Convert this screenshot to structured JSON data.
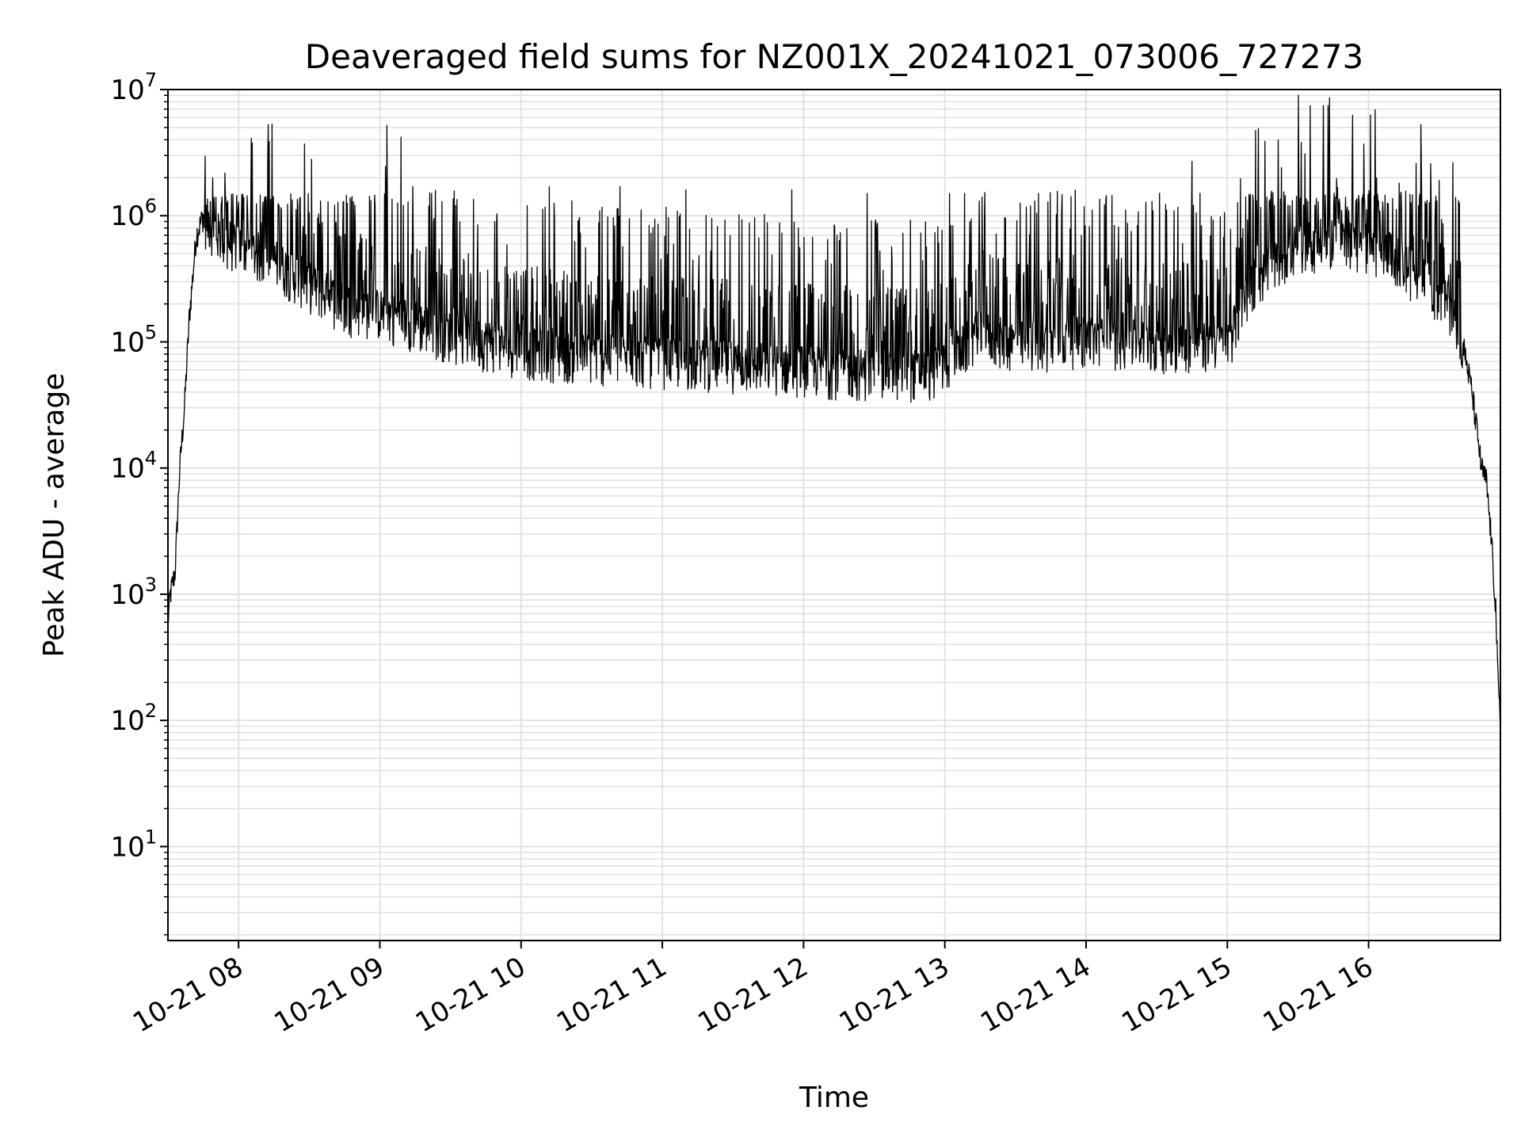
{
  "chart_data": {
    "type": "line",
    "title": "Deaveraged field sums for NZ001X_20241021_073006_727273",
    "xlabel": "Time",
    "ylabel": "Peak ADU - average",
    "yscale": "log",
    "xlim": [
      "2024-10-21 07:30",
      "2024-10-21 16:56"
    ],
    "ylim": [
      1.8,
      10000000
    ],
    "grid": true,
    "line_color": "#000000",
    "x_ticks": [
      "10-21 08",
      "10-21 09",
      "10-21 10",
      "10-21 11",
      "10-21 12",
      "10-21 13",
      "10-21 14",
      "10-21 15",
      "10-21 16"
    ],
    "y_ticks": [
      {
        "value": 10,
        "base": "10",
        "exp": "1"
      },
      {
        "value": 100,
        "base": "10",
        "exp": "2"
      },
      {
        "value": 1000,
        "base": "10",
        "exp": "3"
      },
      {
        "value": 10000,
        "base": "10",
        "exp": "4"
      },
      {
        "value": 100000,
        "base": "10",
        "exp": "5"
      },
      {
        "value": 1000000,
        "base": "10",
        "exp": "6"
      },
      {
        "value": 10000000,
        "base": "10",
        "exp": "7"
      }
    ],
    "series": [
      {
        "baseline": {
          "x": [
            "2024-10-21 07:30",
            "2024-10-21 07:31",
            "2024-10-21 07:33",
            "2024-10-21 07:35",
            "2024-10-21 07:37",
            "2024-10-21 07:39",
            "2024-10-21 07:42",
            "2024-10-21 07:45",
            "2024-10-21 07:48",
            "2024-10-21 07:52",
            "2024-10-21 08:00",
            "2024-10-21 08:15",
            "2024-10-21 08:30",
            "2024-10-21 08:45",
            "2024-10-21 09:00",
            "2024-10-21 09:30",
            "2024-10-21 10:00",
            "2024-10-21 10:30",
            "2024-10-21 11:00",
            "2024-10-21 11:30",
            "2024-10-21 12:00",
            "2024-10-21 12:30",
            "2024-10-21 12:55",
            "2024-10-21 13:15",
            "2024-10-21 13:30",
            "2024-10-21 14:00",
            "2024-10-21 14:30",
            "2024-10-21 15:00",
            "2024-10-21 15:10",
            "2024-10-21 15:30",
            "2024-10-21 15:50",
            "2024-10-21 16:10",
            "2024-10-21 16:25",
            "2024-10-21 16:35",
            "2024-10-21 16:40",
            "2024-10-21 16:44",
            "2024-10-21 16:48",
            "2024-10-21 16:50",
            "2024-10-21 16:52",
            "2024-10-21 16:54",
            "2024-10-21 16:55",
            "2024-10-21 16:56"
          ],
          "y": [
            600,
            1000,
            1500,
            10000,
            30000,
            150000,
            700000,
            1000000,
            900000,
            700000,
            600000,
            450000,
            300000,
            200000,
            180000,
            120000,
            90000,
            80000,
            75000,
            70000,
            65000,
            60000,
            60000,
            120000,
            100000,
            110000,
            100000,
            100000,
            300000,
            600000,
            700000,
            500000,
            300000,
            200000,
            100000,
            40000,
            10000,
            8000,
            3000,
            800,
            200,
            90
          ]
        },
        "spikes": [
          {
            "x": "2024-10-21 07:49",
            "y": 2000000
          },
          {
            "x": "2024-10-21 08:28",
            "y": 3700000
          },
          {
            "x": "2024-10-21 08:31",
            "y": 2800000
          },
          {
            "x": "2024-10-21 09:03",
            "y": 5200000
          },
          {
            "x": "2024-10-21 09:09",
            "y": 4200000
          },
          {
            "x": "2024-10-21 10:12",
            "y": 1700000
          },
          {
            "x": "2024-10-21 10:42",
            "y": 1700000
          },
          {
            "x": "2024-10-21 11:10",
            "y": 1600000
          },
          {
            "x": "2024-10-21 11:55",
            "y": 1600000
          },
          {
            "x": "2024-10-21 12:27",
            "y": 1500000
          },
          {
            "x": "2024-10-21 13:02",
            "y": 1500000
          },
          {
            "x": "2024-10-21 14:45",
            "y": 2700000
          },
          {
            "x": "2024-10-21 15:23",
            "y": 2400000
          },
          {
            "x": "2024-10-21 15:33",
            "y": 3100000
          },
          {
            "x": "2024-10-21 15:58",
            "y": 3700000
          },
          {
            "x": "2024-10-21 16:30",
            "y": 1900000
          }
        ]
      }
    ]
  }
}
